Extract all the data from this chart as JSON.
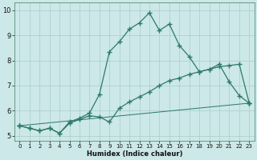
{
  "xlabel": "Humidex (Indice chaleur)",
  "background_color": "#cce8e8",
  "grid_color": "#aacccc",
  "line_color": "#2d7a6a",
  "xlim": [
    -0.5,
    23.5
  ],
  "ylim": [
    4.8,
    10.3
  ],
  "yticks": [
    5,
    6,
    7,
    8,
    9,
    10
  ],
  "xticks": [
    0,
    1,
    2,
    3,
    4,
    5,
    6,
    7,
    8,
    9,
    10,
    11,
    12,
    13,
    14,
    15,
    16,
    17,
    18,
    19,
    20,
    21,
    22,
    23
  ],
  "line1_x": [
    0,
    1,
    2,
    3,
    4,
    5,
    6,
    7,
    8,
    9,
    10,
    11,
    12,
    13,
    14,
    15,
    16,
    17,
    18,
    19,
    20,
    21,
    22,
    23
  ],
  "line1_y": [
    5.4,
    5.3,
    5.2,
    5.3,
    5.1,
    5.5,
    5.65,
    5.8,
    5.75,
    5.55,
    6.1,
    6.35,
    6.55,
    6.75,
    7.0,
    7.2,
    7.3,
    7.45,
    7.55,
    7.65,
    7.75,
    7.8,
    7.85,
    6.3
  ],
  "line2_x": [
    0,
    1,
    2,
    3,
    4,
    5,
    6,
    7,
    8,
    9,
    10,
    11,
    12,
    13,
    14,
    15,
    16,
    17,
    18,
    19,
    20,
    21,
    22,
    23
  ],
  "line2_y": [
    5.4,
    5.3,
    5.2,
    5.3,
    5.1,
    5.55,
    5.7,
    5.9,
    6.65,
    8.35,
    8.75,
    9.25,
    9.5,
    9.9,
    9.2,
    9.45,
    8.6,
    8.15,
    7.55,
    7.65,
    7.85,
    7.15,
    6.6,
    6.3
  ],
  "line3_x": [
    0,
    23
  ],
  "line3_y": [
    5.4,
    6.3
  ],
  "marker": "+",
  "markersize": 4,
  "markeredgewidth": 1.0,
  "linewidth": 0.9,
  "xlabel_fontsize": 6,
  "tick_fontsize": 5,
  "ytick_fontsize": 6
}
